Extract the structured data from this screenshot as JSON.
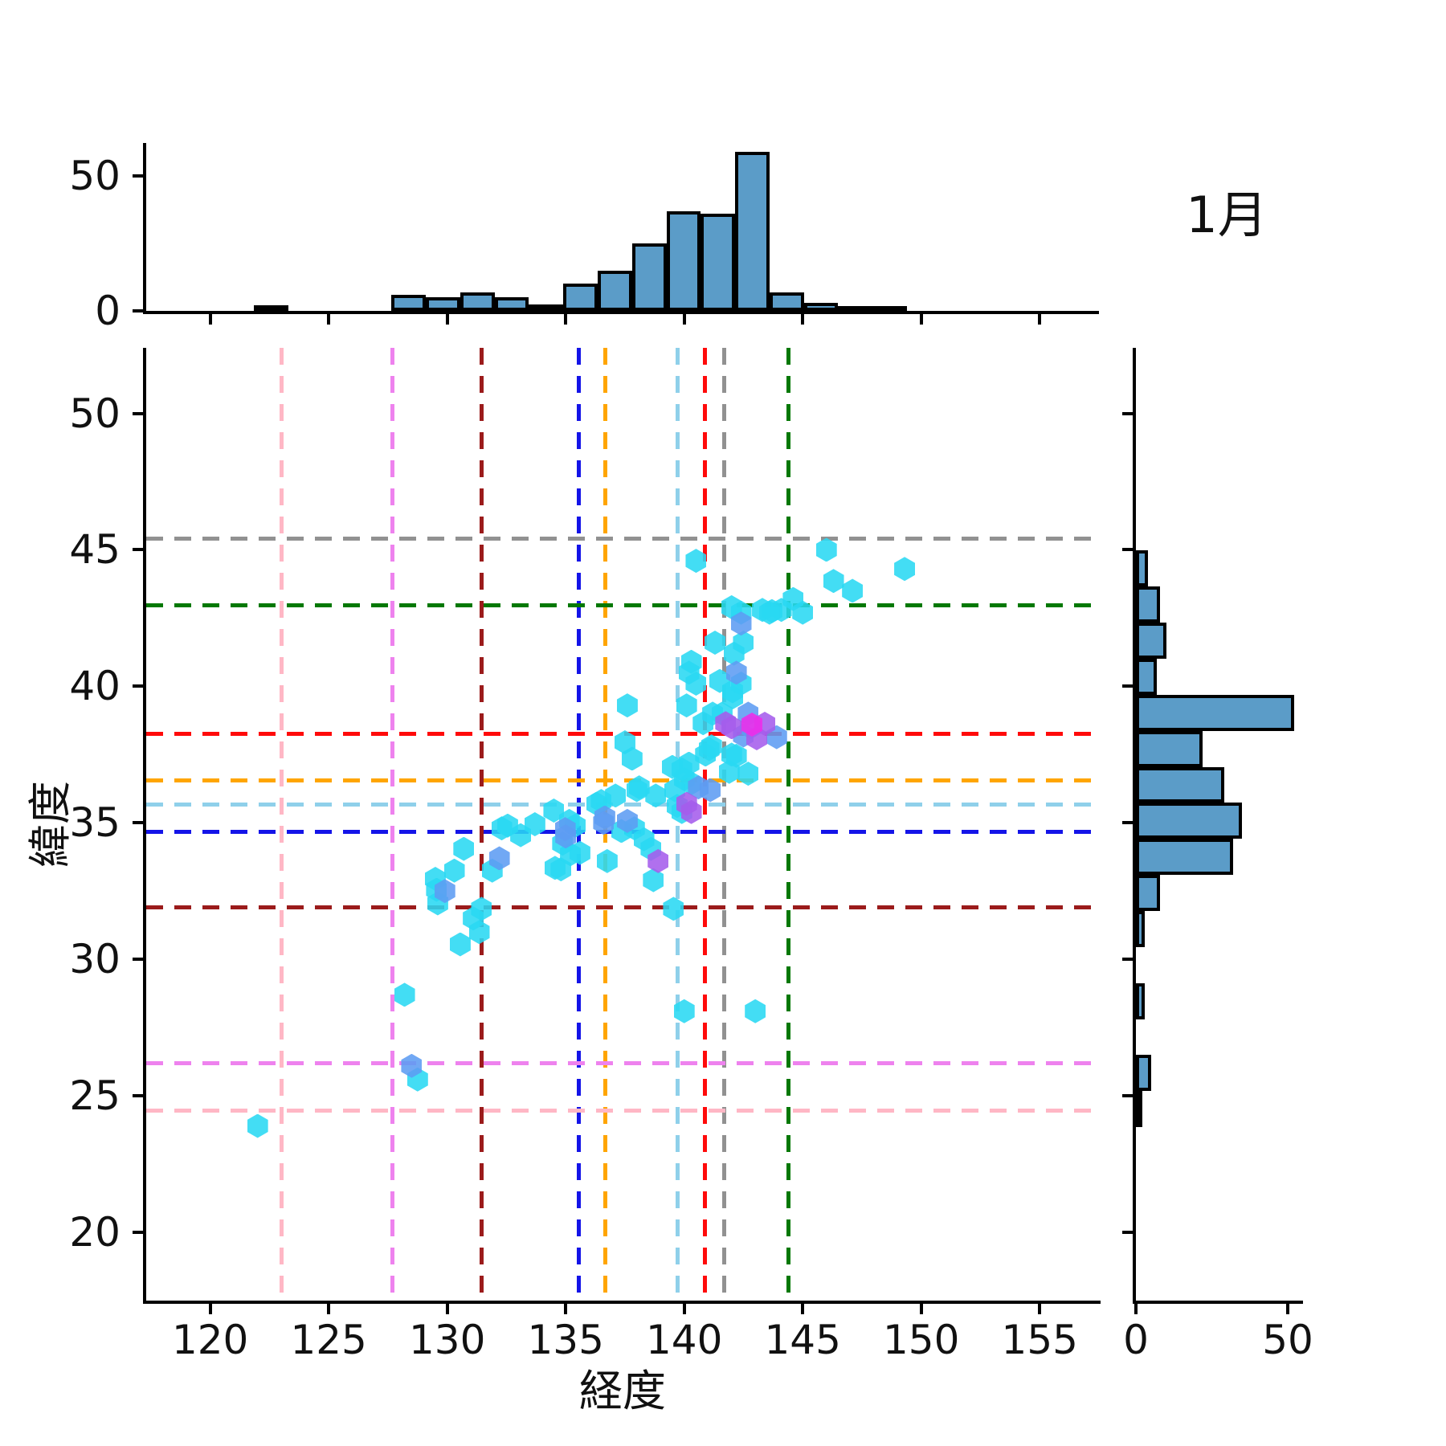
{
  "chart_data": {
    "type": "scatter",
    "subtype": "jointplot-hexagon-scatter-with-marginal-histograms",
    "title": "1月",
    "xlabel": "経度",
    "ylabel": "緯度",
    "xlim": [
      117.3,
      157.5
    ],
    "ylim": [
      17.5,
      52.4
    ],
    "x_ticks": [
      120,
      125,
      130,
      135,
      140,
      145,
      150,
      155
    ],
    "y_ticks": [
      20,
      25,
      30,
      35,
      40,
      45,
      50
    ],
    "grid": false,
    "legend": "none",
    "marginal_count_ticks": [
      0,
      50
    ],
    "top_histogram": {
      "axis": "longitude",
      "bin_edges": [
        121.85,
        123.3,
        124.75,
        126.2,
        127.65,
        129.1,
        130.55,
        132.0,
        133.45,
        134.9,
        136.35,
        137.8,
        139.25,
        140.7,
        142.15,
        143.6,
        145.05,
        146.5,
        147.95,
        149.4
      ],
      "values": [
        2,
        0,
        0,
        0,
        6,
        5,
        7,
        5,
        2.5,
        10,
        15,
        25,
        37,
        36,
        59,
        7,
        3,
        1.7,
        1.7
      ],
      "ymax": 62
    },
    "right_histogram": {
      "axis": "latitude",
      "bin_edges": [
        44.97,
        43.65,
        42.33,
        41.01,
        39.69,
        38.37,
        37.05,
        35.73,
        34.41,
        33.09,
        31.77,
        30.45,
        29.13,
        27.81,
        26.49,
        25.17,
        23.85
      ],
      "values": [
        4,
        8,
        10,
        7,
        52,
        22,
        29,
        35,
        32,
        8,
        3,
        0,
        3,
        0,
        5,
        1
      ],
      "xmax": 55
    },
    "bar_style": {
      "fill": "#5B9CC8",
      "edge": "#000000"
    },
    "reference_lines": {
      "vertical": [
        {
          "x": 122.99,
          "color": "#FFB7C5"
        },
        {
          "x": 127.68,
          "color": "#EE82EE"
        },
        {
          "x": 131.42,
          "color": "#9B1B1B"
        },
        {
          "x": 135.52,
          "color": "#1414E8"
        },
        {
          "x": 136.65,
          "color": "#FFA500"
        },
        {
          "x": 139.69,
          "color": "#8FD0EA"
        },
        {
          "x": 140.87,
          "color": "#FF0A0A"
        },
        {
          "x": 141.68,
          "color": "#919191"
        },
        {
          "x": 144.38,
          "color": "#047804"
        }
      ],
      "horizontal": [
        {
          "y": 45.42,
          "color": "#919191"
        },
        {
          "y": 42.98,
          "color": "#047804"
        },
        {
          "y": 38.27,
          "color": "#FF0A0A"
        },
        {
          "y": 36.56,
          "color": "#FFA500"
        },
        {
          "y": 35.69,
          "color": "#8FD0EA"
        },
        {
          "y": 34.69,
          "color": "#1414E8"
        },
        {
          "y": 31.91,
          "color": "#9B1B1B"
        },
        {
          "y": 26.21,
          "color": "#EE82EE"
        },
        {
          "y": 24.47,
          "color": "#FFB7C5"
        }
      ],
      "dash": [
        21,
        14
      ]
    },
    "scatter": {
      "marker": "hexagon",
      "colors": {
        "c": "#29D8F2",
        "b": "#5D9CF3",
        "p": "#A55CEC",
        "m": "#EF2BE9"
      },
      "points": [
        [
          122.0,
          23.9,
          "c"
        ],
        [
          128.75,
          25.6,
          "c"
        ],
        [
          128.2,
          28.7,
          "c"
        ],
        [
          130.55,
          30.55,
          "c"
        ],
        [
          131.35,
          31.0,
          "c"
        ],
        [
          131.1,
          31.5,
          "c"
        ],
        [
          131.45,
          31.85,
          "c"
        ],
        [
          129.6,
          32.05,
          "c"
        ],
        [
          129.55,
          32.55,
          "c"
        ],
        [
          129.5,
          32.95,
          "c"
        ],
        [
          130.3,
          33.25,
          "c"
        ],
        [
          130.7,
          34.05,
          "c"
        ],
        [
          131.9,
          33.25,
          "c"
        ],
        [
          134.8,
          33.3,
          "c"
        ],
        [
          134.55,
          33.35,
          "c"
        ],
        [
          132.55,
          34.9,
          "c"
        ],
        [
          132.3,
          34.8,
          "c"
        ],
        [
          133.1,
          34.55,
          "c"
        ],
        [
          133.7,
          34.95,
          "c"
        ],
        [
          134.5,
          35.45,
          "c"
        ],
        [
          135.15,
          35.07,
          "c"
        ],
        [
          134.87,
          34.24,
          "c"
        ],
        [
          135.2,
          33.85,
          "c"
        ],
        [
          135.6,
          33.9,
          "c"
        ],
        [
          135.4,
          34.9,
          "c"
        ],
        [
          136.5,
          35.8,
          "c"
        ],
        [
          136.75,
          33.6,
          "c"
        ],
        [
          138.7,
          32.9,
          "c"
        ],
        [
          139.55,
          31.85,
          "c"
        ],
        [
          136.3,
          35.7,
          "c"
        ],
        [
          137.1,
          36.0,
          "c"
        ],
        [
          137.9,
          34.8,
          "c"
        ],
        [
          138.3,
          34.4,
          "c"
        ],
        [
          138.6,
          34.05,
          "c"
        ],
        [
          137.35,
          34.7,
          "c"
        ],
        [
          138.1,
          36.3,
          "c"
        ],
        [
          138.8,
          36.0,
          "c"
        ],
        [
          137.5,
          37.95,
          "c"
        ],
        [
          137.6,
          39.3,
          "c"
        ],
        [
          137.8,
          37.35,
          "c"
        ],
        [
          138.0,
          36.2,
          "c"
        ],
        [
          139.5,
          37.05,
          "c"
        ],
        [
          140.0,
          36.6,
          "c"
        ],
        [
          140.3,
          36.45,
          "c"
        ],
        [
          139.6,
          36.2,
          "c"
        ],
        [
          141.9,
          36.87,
          "c"
        ],
        [
          142.7,
          36.8,
          "c"
        ],
        [
          140.2,
          37.17,
          "c"
        ],
        [
          139.9,
          36.96,
          "c"
        ],
        [
          141.15,
          37.8,
          "c"
        ],
        [
          140.9,
          37.5,
          "c"
        ],
        [
          142.2,
          37.46,
          "c"
        ],
        [
          141.05,
          37.7,
          "c"
        ],
        [
          142.0,
          37.5,
          "c"
        ],
        [
          139.9,
          35.4,
          "c"
        ],
        [
          139.7,
          35.62,
          "c"
        ],
        [
          140.8,
          38.65,
          "c"
        ],
        [
          141.6,
          39.0,
          "c"
        ],
        [
          141.2,
          39.0,
          "c"
        ],
        [
          142.05,
          39.6,
          "c"
        ],
        [
          142.04,
          39.82,
          "c"
        ],
        [
          140.3,
          40.9,
          "c"
        ],
        [
          140.2,
          40.5,
          "c"
        ],
        [
          140.5,
          40.1,
          "c"
        ],
        [
          140.1,
          39.3,
          "c"
        ],
        [
          142.4,
          40.1,
          "c"
        ],
        [
          141.5,
          40.2,
          "c"
        ],
        [
          142.1,
          41.2,
          "c"
        ],
        [
          141.3,
          41.6,
          "c"
        ],
        [
          142.5,
          41.6,
          "c"
        ],
        [
          142.0,
          42.9,
          "c"
        ],
        [
          142.4,
          42.7,
          "c"
        ],
        [
          143.3,
          42.8,
          "c"
        ],
        [
          143.7,
          42.76,
          "c"
        ],
        [
          144.1,
          42.8,
          "c"
        ],
        [
          145.0,
          42.7,
          "c"
        ],
        [
          143.6,
          42.7,
          "c"
        ],
        [
          144.6,
          43.2,
          "c"
        ],
        [
          146.3,
          43.86,
          "c"
        ],
        [
          147.1,
          43.5,
          "c"
        ],
        [
          146.0,
          45.0,
          "c"
        ],
        [
          149.3,
          44.3,
          "c"
        ],
        [
          140.5,
          44.6,
          "c"
        ],
        [
          140.0,
          28.1,
          "c"
        ],
        [
          143.0,
          28.1,
          "c"
        ],
        [
          128.5,
          26.1,
          "b"
        ],
        [
          129.9,
          32.5,
          "b"
        ],
        [
          132.2,
          33.7,
          "b"
        ],
        [
          134.98,
          34.77,
          "b"
        ],
        [
          135.0,
          34.5,
          "b"
        ],
        [
          136.6,
          35.0,
          "b"
        ],
        [
          136.65,
          35.2,
          "b"
        ],
        [
          137.6,
          35.07,
          "b"
        ],
        [
          140.6,
          36.3,
          "b"
        ],
        [
          141.1,
          36.2,
          "b"
        ],
        [
          142.7,
          39.0,
          "b"
        ],
        [
          142.8,
          38.5,
          "b"
        ],
        [
          142.5,
          38.2,
          "b"
        ],
        [
          143.9,
          38.14,
          "b"
        ],
        [
          142.2,
          40.5,
          "b"
        ],
        [
          142.4,
          42.3,
          "b"
        ],
        [
          138.9,
          33.6,
          "p"
        ],
        [
          140.1,
          35.7,
          "p"
        ],
        [
          140.3,
          35.4,
          "p"
        ],
        [
          142.0,
          38.5,
          "p"
        ],
        [
          143.4,
          38.63,
          "p"
        ],
        [
          143.06,
          38.1,
          "p"
        ],
        [
          141.75,
          38.65,
          "p"
        ],
        [
          142.86,
          38.6,
          "m"
        ]
      ]
    }
  }
}
